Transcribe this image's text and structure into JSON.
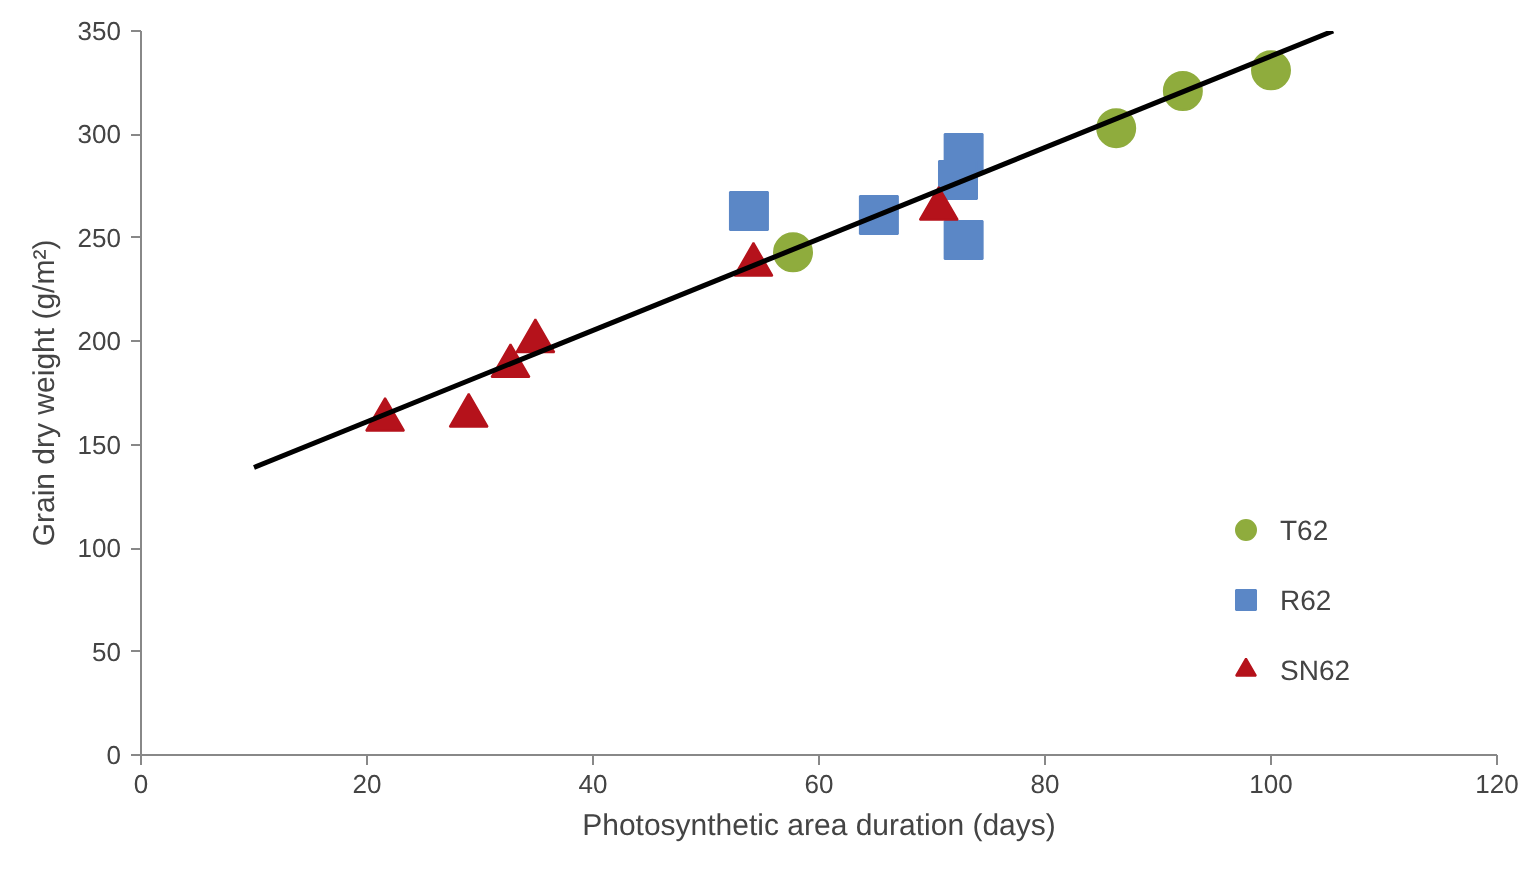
{
  "chart_data": {
    "type": "scatter",
    "xlabel": "Photosynthetic area duration (days)",
    "ylabel": "Grain dry weight (g/m²)",
    "xlim": [
      0,
      120
    ],
    "xticks": [
      0,
      20,
      40,
      60,
      80,
      100,
      120
    ],
    "ylim": [
      0,
      350
    ],
    "yticks": [
      0,
      50,
      100,
      150,
      200,
      250,
      300,
      350
    ],
    "grid": false,
    "legend": "right",
    "series": [
      {
        "name": "T62",
        "color": "#8fac3d",
        "marker": "circle",
        "x": [
          57.7,
          86.3,
          92.2,
          100
        ],
        "values": [
          243,
          303,
          321,
          331
        ]
      },
      {
        "name": "R62",
        "color": "#5b87c6",
        "marker": "square",
        "x": [
          53.8,
          65.3,
          72.8,
          72.3,
          72.8
        ],
        "values": [
          263,
          261,
          291,
          278,
          249
        ]
      },
      {
        "name": "SN62",
        "color": "#b5121b",
        "marker": "triangle",
        "x": [
          21.6,
          29,
          32.7,
          34.9,
          54.2,
          70.6
        ],
        "values": [
          162,
          164,
          188,
          200,
          237,
          264
        ]
      },
      {
        "type": "line",
        "color": "#000000",
        "x": [
          10,
          105.5
        ],
        "values": [
          139,
          350
        ]
      }
    ]
  }
}
